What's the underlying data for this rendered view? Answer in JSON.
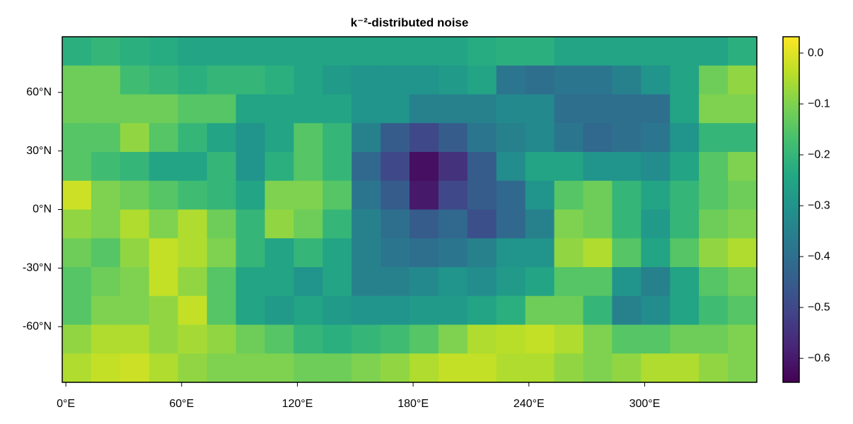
{
  "chart_data": {
    "type": "heatmap",
    "title": "k⁻²-distributed noise",
    "colormap": "viridis",
    "xlim": [
      -1.875,
      358.125
    ],
    "ylim": [
      -88.5,
      88.5
    ],
    "clim": [
      -0.647,
      0.032
    ],
    "xticks": [
      {
        "value": 0,
        "label": "0°E"
      },
      {
        "value": 60,
        "label": "60°E"
      },
      {
        "value": 120,
        "label": "120°E"
      },
      {
        "value": 180,
        "label": "180°E"
      },
      {
        "value": 240,
        "label": "240°E"
      },
      {
        "value": 300,
        "label": "300°E"
      }
    ],
    "yticks": [
      {
        "value": -60,
        "label": "-60°N"
      },
      {
        "value": -30,
        "label": "-30°N"
      },
      {
        "value": 0,
        "label": "0°N"
      },
      {
        "value": 30,
        "label": "30°N"
      },
      {
        "value": 60,
        "label": "60°N"
      }
    ],
    "cticks": [
      {
        "value": 0,
        "label": "0.0"
      },
      {
        "value": -0.1,
        "label": "−0.1"
      },
      {
        "value": -0.2,
        "label": "−0.2"
      },
      {
        "value": -0.3,
        "label": "−0.3"
      },
      {
        "value": -0.4,
        "label": "−0.4"
      },
      {
        "value": -0.5,
        "label": "−0.5"
      },
      {
        "value": -0.6,
        "label": "−0.6"
      }
    ],
    "z": [
      [
        -0.22,
        -0.2,
        -0.22,
        -0.23,
        -0.25,
        -0.25,
        -0.25,
        -0.25,
        -0.25,
        -0.25,
        -0.25,
        -0.25,
        -0.25,
        -0.25,
        -0.23,
        -0.22,
        -0.22,
        -0.25,
        -0.25,
        -0.25,
        -0.25,
        -0.25,
        -0.25,
        -0.22
      ],
      [
        -0.12,
        -0.12,
        -0.18,
        -0.2,
        -0.22,
        -0.2,
        -0.2,
        -0.22,
        -0.25,
        -0.28,
        -0.3,
        -0.3,
        -0.3,
        -0.28,
        -0.25,
        -0.38,
        -0.4,
        -0.38,
        -0.38,
        -0.35,
        -0.3,
        -0.25,
        -0.12,
        -0.08
      ],
      [
        -0.12,
        -0.12,
        -0.12,
        -0.12,
        -0.15,
        -0.15,
        -0.25,
        -0.25,
        -0.25,
        -0.25,
        -0.3,
        -0.3,
        -0.35,
        -0.35,
        -0.35,
        -0.33,
        -0.33,
        -0.4,
        -0.4,
        -0.4,
        -0.4,
        -0.25,
        -0.1,
        -0.1
      ],
      [
        -0.15,
        -0.15,
        -0.08,
        -0.15,
        -0.2,
        -0.25,
        -0.3,
        -0.25,
        -0.15,
        -0.2,
        -0.35,
        -0.45,
        -0.5,
        -0.45,
        -0.38,
        -0.35,
        -0.33,
        -0.38,
        -0.42,
        -0.4,
        -0.38,
        -0.3,
        -0.2,
        -0.2
      ],
      [
        -0.15,
        -0.18,
        -0.2,
        -0.25,
        -0.25,
        -0.2,
        -0.3,
        -0.22,
        -0.15,
        -0.2,
        -0.42,
        -0.5,
        -0.62,
        -0.55,
        -0.45,
        -0.32,
        -0.25,
        -0.25,
        -0.3,
        -0.3,
        -0.32,
        -0.25,
        -0.15,
        -0.1
      ],
      [
        -0.02,
        -0.1,
        -0.12,
        -0.15,
        -0.18,
        -0.2,
        -0.25,
        -0.1,
        -0.1,
        -0.15,
        -0.38,
        -0.45,
        -0.6,
        -0.5,
        -0.45,
        -0.42,
        -0.3,
        -0.15,
        -0.12,
        -0.2,
        -0.25,
        -0.2,
        -0.15,
        -0.12
      ],
      [
        -0.08,
        -0.1,
        -0.05,
        -0.1,
        -0.05,
        -0.12,
        -0.2,
        -0.08,
        -0.12,
        -0.2,
        -0.35,
        -0.4,
        -0.45,
        -0.42,
        -0.48,
        -0.42,
        -0.35,
        -0.1,
        -0.12,
        -0.2,
        -0.28,
        -0.2,
        -0.12,
        -0.1
      ],
      [
        -0.12,
        -0.15,
        -0.08,
        -0.03,
        -0.05,
        -0.1,
        -0.2,
        -0.25,
        -0.2,
        -0.25,
        -0.35,
        -0.38,
        -0.4,
        -0.38,
        -0.35,
        -0.3,
        -0.3,
        -0.08,
        -0.05,
        -0.15,
        -0.25,
        -0.15,
        -0.08,
        -0.05
      ],
      [
        -0.15,
        -0.12,
        -0.1,
        -0.03,
        -0.08,
        -0.15,
        -0.25,
        -0.25,
        -0.3,
        -0.25,
        -0.35,
        -0.35,
        -0.33,
        -0.3,
        -0.32,
        -0.28,
        -0.25,
        -0.15,
        -0.15,
        -0.3,
        -0.35,
        -0.25,
        -0.15,
        -0.12
      ],
      [
        -0.15,
        -0.1,
        -0.1,
        -0.08,
        -0.03,
        -0.15,
        -0.25,
        -0.28,
        -0.25,
        -0.28,
        -0.3,
        -0.3,
        -0.28,
        -0.28,
        -0.25,
        -0.22,
        -0.12,
        -0.12,
        -0.2,
        -0.35,
        -0.32,
        -0.25,
        -0.18,
        -0.15
      ],
      [
        -0.08,
        -0.05,
        -0.05,
        -0.08,
        -0.06,
        -0.08,
        -0.12,
        -0.15,
        -0.2,
        -0.22,
        -0.2,
        -0.18,
        -0.15,
        -0.1,
        -0.05,
        -0.04,
        -0.03,
        -0.05,
        -0.1,
        -0.15,
        -0.15,
        -0.12,
        -0.12,
        -0.1
      ],
      [
        -0.05,
        -0.03,
        -0.02,
        -0.05,
        -0.08,
        -0.1,
        -0.1,
        -0.1,
        -0.12,
        -0.12,
        -0.1,
        -0.08,
        -0.05,
        -0.03,
        -0.03,
        -0.05,
        -0.05,
        -0.08,
        -0.1,
        -0.08,
        -0.05,
        -0.05,
        -0.08,
        -0.1
      ]
    ]
  }
}
